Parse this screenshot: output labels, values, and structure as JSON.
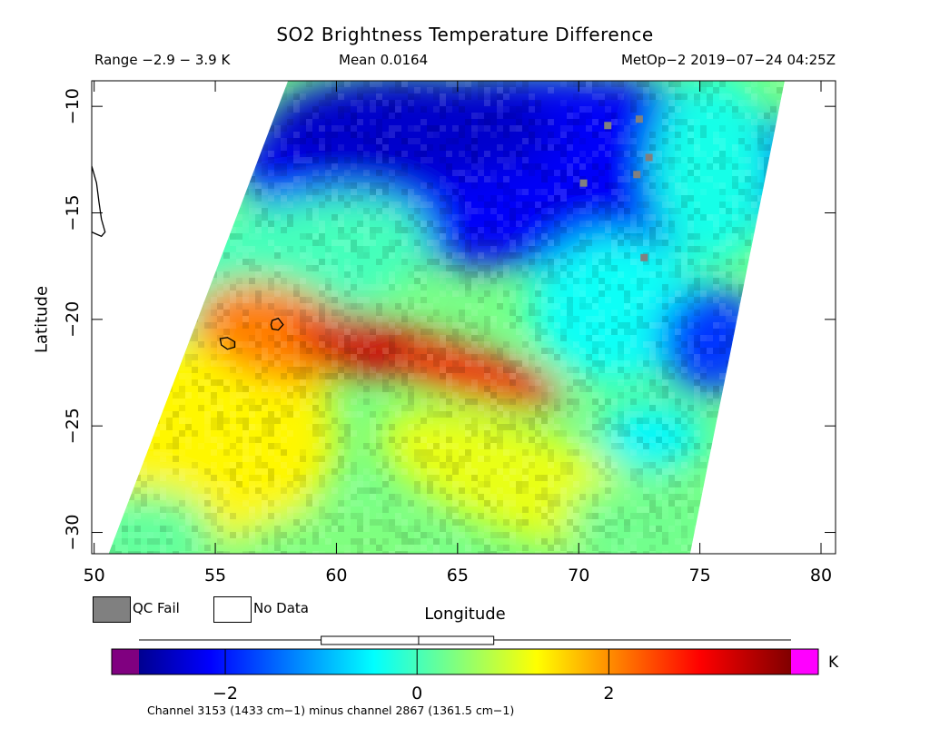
{
  "header": {
    "title": "SO2 Brightness Temperature Difference",
    "range": "Range −2.9 − 3.9 K",
    "mean": "Mean 0.0164",
    "satellite_time": "MetOp−2 2019−07−24 04:25Z"
  },
  "legend": {
    "qc_fail": "QC Fail",
    "no_data": "No Data",
    "qc_color": "#808080",
    "no_data_color": "#ffffff"
  },
  "colorbar": {
    "units": "K",
    "ticks": [
      {
        "value": -2,
        "label": "−2"
      },
      {
        "value": 0,
        "label": "0"
      },
      {
        "value": 2,
        "label": "2"
      }
    ],
    "min": -2.9,
    "max": 3.9,
    "mean": 0.0164,
    "box_low": -1.0,
    "box_high": 0.8,
    "under_color": "#800080",
    "over_color": "#ff00ff",
    "footnote": "Channel 3153 (1433 cm−1) minus channel 2867 (1361.5 cm−1)"
  },
  "chart_data": {
    "type": "heatmap",
    "title": "SO2 Brightness Temperature Difference",
    "xlabel": "Longitude",
    "ylabel": "Latitude",
    "xlim": [
      49.9,
      80.6
    ],
    "ylim": [
      -31.0,
      -8.8
    ],
    "x_ticks": [
      {
        "value": 50,
        "label": "50"
      },
      {
        "value": 55,
        "label": "55"
      },
      {
        "value": 60,
        "label": "60"
      },
      {
        "value": 65,
        "label": "65"
      },
      {
        "value": 70,
        "label": "70"
      },
      {
        "value": 75,
        "label": "75"
      },
      {
        "value": 80,
        "label": "80"
      }
    ],
    "y_ticks": [
      {
        "value": -10,
        "label": "−10"
      },
      {
        "value": -15,
        "label": "−15"
      },
      {
        "value": -20,
        "label": "−20"
      },
      {
        "value": -25,
        "label": "−25"
      },
      {
        "value": -30,
        "label": "−30"
      }
    ],
    "value_range": [
      -2.9,
      3.9
    ],
    "swath_corners": [
      {
        "lon": 58.0,
        "lat": -8.8
      },
      {
        "lon": 78.5,
        "lat": -8.8
      },
      {
        "lon": 74.6,
        "lat": -31.0
      },
      {
        "lon": 50.6,
        "lat": -31.0
      }
    ],
    "features": [
      {
        "name": "plume_core",
        "lon": 61.0,
        "lat": -21.0,
        "value": 3.3
      },
      {
        "name": "plume_axis",
        "lon_start": 58.5,
        "lat_start": -20.2,
        "lon_end": 68.5,
        "lat_end": -23.3,
        "value": 3.0
      },
      {
        "name": "northern_low",
        "lon": 67.0,
        "lat": -12.5,
        "value": -2.3
      },
      {
        "name": "southwest_band",
        "lon": 56.0,
        "lat": -26.0,
        "value": 1.3
      }
    ],
    "coastlines": [
      {
        "name": "reunion",
        "points": [
          [
            55.2,
            -20.9
          ],
          [
            55.5,
            -20.85
          ],
          [
            55.8,
            -21.05
          ],
          [
            55.8,
            -21.3
          ],
          [
            55.5,
            -21.4
          ],
          [
            55.25,
            -21.2
          ]
        ]
      },
      {
        "name": "mauritius",
        "points": [
          [
            57.35,
            -20.05
          ],
          [
            57.6,
            -19.95
          ],
          [
            57.8,
            -20.25
          ],
          [
            57.6,
            -20.5
          ],
          [
            57.35,
            -20.45
          ],
          [
            57.3,
            -20.25
          ]
        ]
      },
      {
        "name": "madagascar",
        "points": [
          [
            49.9,
            -12.8
          ],
          [
            50.1,
            -13.6
          ],
          [
            50.2,
            -14.5
          ],
          [
            50.3,
            -15.3
          ],
          [
            50.45,
            -15.9
          ],
          [
            50.3,
            -16.1
          ],
          [
            50.1,
            -16.0
          ],
          [
            49.9,
            -15.9
          ]
        ]
      }
    ]
  }
}
